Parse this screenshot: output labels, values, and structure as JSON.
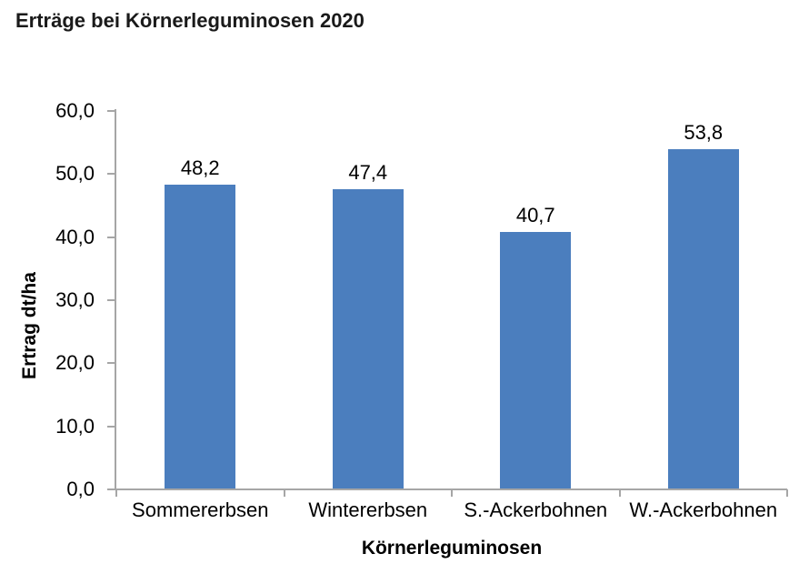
{
  "title": "Erträge bei Körnerleguminosen 2020",
  "chart_data": {
    "type": "bar",
    "title": "Erträge bei Körnerleguminosen 2020",
    "categories": [
      "Sommererbsen",
      "Wintererbsen",
      "S.-Ackerbohnen",
      "W.-Ackerbohnen"
    ],
    "values": [
      48.2,
      47.4,
      40.7,
      53.8
    ],
    "value_labels": [
      "48,2",
      "47,4",
      "40,7",
      "53,8"
    ],
    "xlabel": "Körnerleguminosen",
    "ylabel": "Ertrag dt/ha",
    "ylim": [
      0,
      60
    ],
    "ytick_interval": 10,
    "ytick_labels": [
      "0,0",
      "10,0",
      "20,0",
      "30,0",
      "40,0",
      "50,0",
      "60,0"
    ],
    "grid": false,
    "legend": "none",
    "decimal_separator": ",",
    "colors": {
      "bar": "#4B7EBE",
      "axis": "#A6A6A6",
      "text": "#000000",
      "background": "#FFFFFF"
    }
  }
}
